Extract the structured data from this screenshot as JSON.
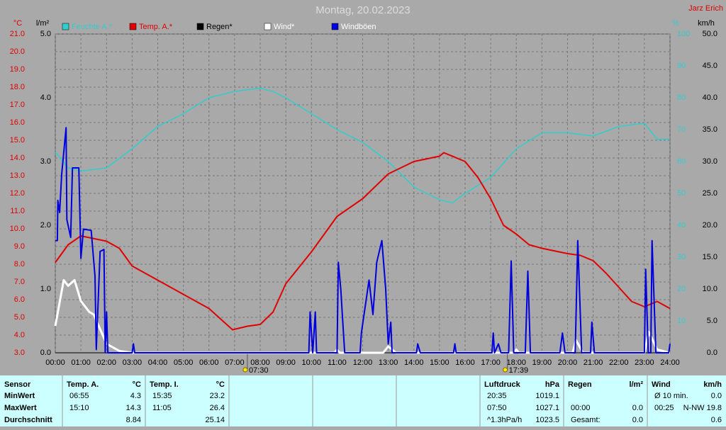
{
  "chart_data": {
    "type": "line",
    "title": "Montag, 20.02.2023",
    "author": "Jarz Erich",
    "y_unit": "°C",
    "y3_unit": "l/m²",
    "y4_unit": "%",
    "y2_unit": "km/h",
    "xlim": [
      0,
      24
    ],
    "xticks": [
      {
        "value": 0,
        "label": "00:00"
      },
      {
        "value": 1,
        "label": "01:00"
      },
      {
        "value": 2,
        "label": "02:00"
      },
      {
        "value": 3,
        "label": "03:00"
      },
      {
        "value": 4,
        "label": "04:00"
      },
      {
        "value": 5,
        "label": "05:00"
      },
      {
        "value": 6,
        "label": "06:00"
      },
      {
        "value": 7,
        "label": "07:00"
      },
      {
        "value": 8,
        "label": "08:00"
      },
      {
        "value": 9,
        "label": "09:00"
      },
      {
        "value": 10,
        "label": "10:00"
      },
      {
        "value": 11,
        "label": "11:00"
      },
      {
        "value": 12,
        "label": "12:00"
      },
      {
        "value": 13,
        "label": "13:00"
      },
      {
        "value": 14,
        "label": "14:00"
      },
      {
        "value": 15,
        "label": "15:00"
      },
      {
        "value": 16,
        "label": "16:00"
      },
      {
        "value": 17,
        "label": "17:00"
      },
      {
        "value": 18,
        "label": "18:00"
      },
      {
        "value": 19,
        "label": "19:00"
      },
      {
        "value": 20,
        "label": "20:00"
      },
      {
        "value": 21,
        "label": "21:00"
      },
      {
        "value": 22,
        "label": "22:00"
      },
      {
        "value": 23,
        "label": "23:00"
      },
      {
        "value": 24,
        "label": "24:00"
      }
    ],
    "ylim": [
      3,
      21
    ],
    "yticks": [
      {
        "value": 3,
        "label": "3.0"
      },
      {
        "value": 4,
        "label": "4.0"
      },
      {
        "value": 5,
        "label": "5.0"
      },
      {
        "value": 6,
        "label": "6.0"
      },
      {
        "value": 7,
        "label": "7.0"
      },
      {
        "value": 8,
        "label": "8.0"
      },
      {
        "value": 9,
        "label": "9.0"
      },
      {
        "value": 10,
        "label": "10.0"
      },
      {
        "value": 11,
        "label": "11.0"
      },
      {
        "value": 12,
        "label": "12.0"
      },
      {
        "value": 13,
        "label": "13.0"
      },
      {
        "value": 14,
        "label": "14.0"
      },
      {
        "value": 15,
        "label": "15.0"
      },
      {
        "value": 16,
        "label": "16.0"
      },
      {
        "value": 17,
        "label": "17.0"
      },
      {
        "value": 18,
        "label": "18.0"
      },
      {
        "value": 19,
        "label": "19.0"
      },
      {
        "value": 20,
        "label": "20.0"
      },
      {
        "value": 21,
        "label": "21.0"
      }
    ],
    "y3lim": [
      0,
      5
    ],
    "y3ticks": [
      {
        "value": 0,
        "label": "0.0"
      },
      {
        "value": 1,
        "label": "1.0"
      },
      {
        "value": 2,
        "label": "2.0"
      },
      {
        "value": 3,
        "label": "3.0"
      },
      {
        "value": 4,
        "label": "4.0"
      },
      {
        "value": 5,
        "label": "5.0"
      }
    ],
    "y4lim": [
      0,
      100
    ],
    "y4ticks": [
      10,
      20,
      30,
      40,
      50,
      60,
      70,
      80,
      90,
      100
    ],
    "y2lim": [
      0,
      50
    ],
    "y2ticks": [
      {
        "value": 0,
        "label": "0.0"
      },
      {
        "value": 5,
        "label": "5.0"
      },
      {
        "value": 10,
        "label": "10.0"
      },
      {
        "value": 15,
        "label": "15.0"
      },
      {
        "value": 20,
        "label": "20.0"
      },
      {
        "value": 25,
        "label": "25.0"
      },
      {
        "value": 30,
        "label": "30.0"
      },
      {
        "value": 35,
        "label": "35.0"
      },
      {
        "value": 40,
        "label": "40.0"
      },
      {
        "value": 45,
        "label": "45.0"
      },
      {
        "value": 50,
        "label": "50.0"
      }
    ],
    "grid": true,
    "sun_events": [
      {
        "x": 7.5,
        "label": "07:30"
      },
      {
        "x": 17.65,
        "label": "17:39"
      }
    ],
    "series": [
      {
        "name": "Feuchte A.*",
        "color": "#33cccc",
        "label_color": "#33cccc",
        "axis": "y4",
        "x": [
          0,
          0.5,
          1,
          2,
          3,
          4,
          5,
          6,
          7,
          8,
          8.5,
          9,
          10,
          11,
          12,
          13,
          14,
          15,
          15.5,
          16,
          17,
          18,
          19,
          20,
          21,
          22,
          23,
          23.5,
          24
        ],
        "values": [
          63,
          58,
          57,
          58,
          64,
          71,
          75,
          80,
          82,
          83,
          82,
          80,
          75,
          70,
          66,
          60,
          52,
          48,
          47,
          50,
          55,
          64,
          69,
          69,
          68,
          71,
          72,
          67,
          67
        ]
      },
      {
        "name": "Temp. A.*",
        "color": "#e00000",
        "label_color": "#e00000",
        "axis": "y",
        "x": [
          0,
          0.5,
          1,
          2,
          2.5,
          3,
          4,
          5,
          6,
          6.92,
          7.5,
          8,
          8.5,
          9,
          10,
          11,
          12,
          13,
          14,
          15,
          15.17,
          16,
          16.5,
          17,
          17.5,
          18,
          18.5,
          19,
          20,
          20.5,
          21,
          21.5,
          22,
          22.5,
          23,
          23.5,
          24
        ],
        "values": [
          8.1,
          9.1,
          9.6,
          9.3,
          8.9,
          7.9,
          7.1,
          6.3,
          5.5,
          4.3,
          4.5,
          4.6,
          5.3,
          6.9,
          8.7,
          10.7,
          11.7,
          13.1,
          13.8,
          14.1,
          14.3,
          13.8,
          12.9,
          11.7,
          10.2,
          9.7,
          9.1,
          8.9,
          8.6,
          8.5,
          8.2,
          7.5,
          6.7,
          5.9,
          5.6,
          5.9,
          5.5
        ]
      },
      {
        "name": "Regen*",
        "color": "#000000",
        "label_color": "#000000",
        "axis": "y3",
        "x": [
          0,
          24
        ],
        "values": [
          0,
          0
        ]
      },
      {
        "name": "Wind*",
        "color": "#ffffff",
        "label_color": "#ffffff",
        "axis": "y2",
        "x": [
          0,
          0.33,
          0.5,
          0.75,
          1,
          1.33,
          1.5,
          2,
          2.5,
          3,
          10.9,
          11,
          11.1,
          12.8,
          13,
          13.3,
          17.9,
          18,
          18.1,
          20.2,
          20.33,
          20.6,
          23,
          23.17,
          23.5,
          24
        ],
        "values": [
          4.2,
          11.4,
          10.5,
          11.4,
          8.1,
          6.4,
          6,
          1.4,
          0.3,
          0,
          0,
          0.5,
          0,
          0,
          1,
          0,
          0,
          0.5,
          0,
          0,
          2,
          0,
          0,
          3.3,
          0.5,
          0
        ]
      },
      {
        "name": "Windböen",
        "color": "#0000dd",
        "label_color": "#ffffff",
        "axis": "y2",
        "x": [
          0,
          0.08,
          0.1,
          0.17,
          0.25,
          0.42,
          0.45,
          0.6,
          0.67,
          0.92,
          1,
          1.1,
          1.4,
          1.55,
          1.6,
          1.75,
          1.9,
          1.95,
          2,
          2.05,
          3,
          3.05,
          3.1,
          9.9,
          9.95,
          10.05,
          10.15,
          10.2,
          11,
          11.05,
          11.15,
          11.2,
          11.3,
          11.9,
          11.95,
          12.25,
          12.4,
          12.55,
          12.75,
          12.9,
          13,
          13.1,
          13.15,
          14.1,
          14.15,
          14.25,
          15.55,
          15.6,
          15.65,
          17.05,
          17.1,
          17.15,
          17.3,
          17.4,
          17.7,
          17.8,
          17.9,
          18.35,
          18.45,
          18.55,
          19.7,
          19.8,
          19.9,
          20.3,
          20.4,
          20.55,
          20.9,
          20.95,
          21.05,
          23,
          23.05,
          23.15,
          23.25,
          23.3,
          23.45,
          23.95,
          24
        ],
        "values": [
          17.6,
          17.6,
          23.9,
          22,
          28,
          35.3,
          20.9,
          18.1,
          29,
          29,
          14.8,
          19.4,
          19.2,
          12,
          0.5,
          15.9,
          16.2,
          0,
          6.4,
          0,
          0,
          1.4,
          0,
          0,
          6.4,
          0,
          6.4,
          0,
          0,
          14.2,
          9.8,
          6.4,
          0,
          0,
          3.1,
          11.4,
          6,
          14.2,
          17.6,
          10,
          1.4,
          4.8,
          0,
          0,
          1.4,
          0,
          0,
          1.4,
          0,
          0,
          3.1,
          0,
          1.4,
          0,
          0,
          14.4,
          0,
          0,
          12.8,
          0,
          0,
          3.1,
          0,
          0,
          17.6,
          0,
          0,
          4.8,
          0,
          0,
          13.1,
          0,
          0,
          17.6,
          0,
          0,
          1.4
        ]
      }
    ]
  },
  "table": {
    "sensor_header": "Sensor",
    "row_labels": [
      "MinWert",
      "MaxWert",
      "Durchschnitt"
    ],
    "groups": [
      {
        "column": 1,
        "name": "Temp. A.",
        "unit": "°C",
        "cells": [
          [
            "06:55",
            "4.3"
          ],
          [
            "15:10",
            "14.3"
          ],
          [
            null,
            "8.84"
          ]
        ]
      },
      {
        "column": 2,
        "name": "Temp. I.",
        "unit": "°C",
        "cells": [
          [
            "15:35",
            "23.2"
          ],
          [
            "11:05",
            "26.4"
          ],
          [
            null,
            "25.14"
          ]
        ]
      },
      {
        "column": 6,
        "name": "Luftdruck",
        "unit": "hPa",
        "cells": [
          [
            "20:35",
            "1019.1"
          ],
          [
            "07:50",
            "1027.1"
          ],
          [
            "^1.3hPa/h",
            "1023.5"
          ]
        ]
      },
      {
        "column": 7,
        "name": "Regen",
        "unit": "l/m²",
        "cells": [
          [
            null,
            null
          ],
          [
            "00:00",
            "0.0"
          ],
          [
            "Gesamt:",
            "0.0"
          ]
        ]
      },
      {
        "column": 8,
        "name": "Wind",
        "unit": "km/h",
        "cells": [
          [
            "Ø 10 min.",
            "0.0"
          ],
          [
            "00:25",
            "N-NW 19.8"
          ],
          [
            null,
            "0.6"
          ]
        ]
      }
    ]
  }
}
